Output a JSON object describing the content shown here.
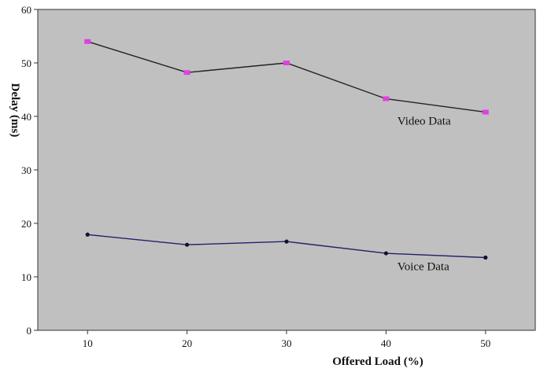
{
  "chart_data": {
    "type": "line",
    "title": "",
    "xlabel": "Offered Load (%)",
    "ylabel": "Delay (ms)",
    "x": [
      10,
      20,
      30,
      40,
      50
    ],
    "xlim": [
      5,
      55
    ],
    "ylim": [
      0,
      60
    ],
    "x_ticks": [
      10,
      20,
      30,
      40,
      50
    ],
    "y_ticks": [
      0,
      10,
      20,
      30,
      40,
      50,
      60
    ],
    "grid": false,
    "plot_background": "#c0c0c0",
    "series": [
      {
        "name": "Video Data",
        "values": [
          54.0,
          48.2,
          50.0,
          43.3,
          40.8
        ],
        "line_color": "#222222",
        "marker_color": "#e040e0"
      },
      {
        "name": "Voice Data",
        "values": [
          17.9,
          16.0,
          16.6,
          14.4,
          13.6
        ],
        "line_color": "#22226a",
        "marker_color": "#111133"
      }
    ]
  }
}
